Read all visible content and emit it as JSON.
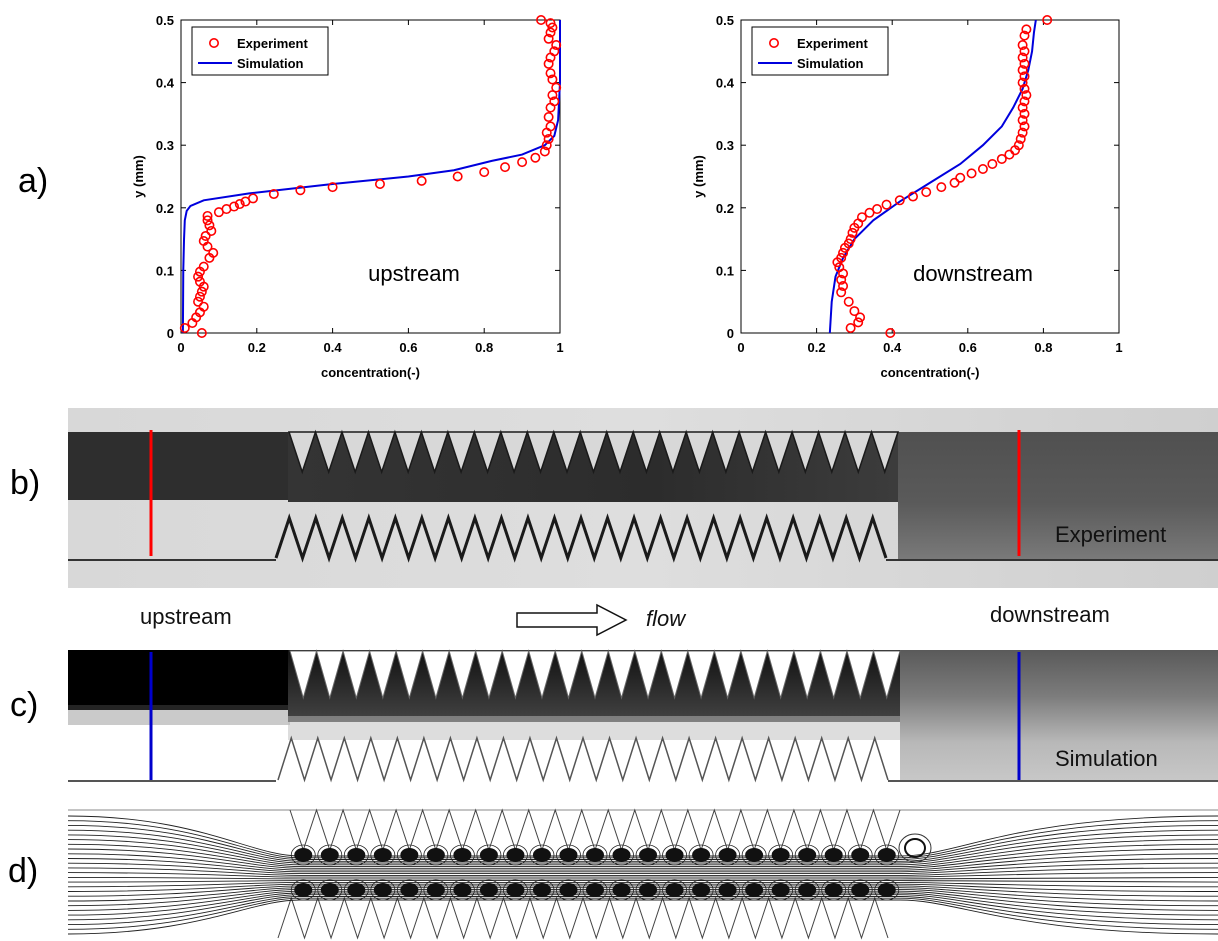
{
  "panel_labels": {
    "a": "a)",
    "b": "b)",
    "c": "c)",
    "d": "d)"
  },
  "labels": {
    "experiment": "Experiment",
    "simulation": "Simulation",
    "upstream": "upstream",
    "downstream": "downstream",
    "flow": "flow"
  },
  "colors": {
    "experiment": "#ff0000",
    "simulation": "#0000dd"
  },
  "chart_data": [
    {
      "type": "line",
      "annotation": "upstream",
      "xlabel": "concentration(-)",
      "ylabel": "y (mm)",
      "xlim": [
        0,
        1
      ],
      "ylim": [
        0,
        0.5
      ],
      "xticks": [
        "0",
        "0.2",
        "0.4",
        "0.6",
        "0.8",
        "1"
      ],
      "yticks": [
        "0",
        "0.1",
        "0.2",
        "0.3",
        "0.4",
        "0.5"
      ],
      "legend": "top-left",
      "grid": false,
      "series": [
        {
          "name": "Experiment",
          "style": "markers",
          "x": [
            0.055,
            0.01,
            0.03,
            0.04,
            0.05,
            0.06,
            0.045,
            0.05,
            0.055,
            0.06,
            0.05,
            0.045,
            0.05,
            0.06,
            0.075,
            0.085,
            0.07,
            0.06,
            0.065,
            0.08,
            0.075,
            0.07,
            0.07,
            0.1,
            0.12,
            0.14,
            0.155,
            0.17,
            0.19,
            0.245,
            0.315,
            0.4,
            0.525,
            0.635,
            0.73,
            0.8,
            0.855,
            0.9,
            0.935,
            0.96,
            0.965,
            0.97,
            0.965,
            0.975,
            0.97,
            0.975,
            0.985,
            0.98,
            0.99,
            0.98,
            0.975,
            0.97,
            0.975,
            0.985,
            0.99,
            0.97,
            0.975,
            0.98,
            0.975,
            0.95
          ],
          "y": [
            0.0,
            0.008,
            0.016,
            0.025,
            0.033,
            0.042,
            0.05,
            0.058,
            0.066,
            0.074,
            0.082,
            0.09,
            0.098,
            0.106,
            0.12,
            0.128,
            0.138,
            0.147,
            0.155,
            0.163,
            0.172,
            0.18,
            0.187,
            0.193,
            0.198,
            0.202,
            0.206,
            0.21,
            0.215,
            0.222,
            0.228,
            0.233,
            0.238,
            0.243,
            0.25,
            0.257,
            0.265,
            0.273,
            0.28,
            0.29,
            0.3,
            0.31,
            0.32,
            0.33,
            0.345,
            0.36,
            0.37,
            0.38,
            0.392,
            0.405,
            0.415,
            0.43,
            0.44,
            0.45,
            0.46,
            0.47,
            0.48,
            0.488,
            0.495,
            0.5
          ]
        },
        {
          "name": "Simulation",
          "style": "line",
          "x": [
            0.005,
            0.006,
            0.008,
            0.01,
            0.015,
            0.025,
            0.06,
            0.18,
            0.4,
            0.6,
            0.72,
            0.82,
            0.9,
            0.96,
            0.985,
            0.995,
            1.0,
            1.0
          ],
          "y": [
            0.0,
            0.1,
            0.15,
            0.18,
            0.195,
            0.203,
            0.212,
            0.223,
            0.238,
            0.25,
            0.26,
            0.275,
            0.285,
            0.3,
            0.315,
            0.34,
            0.4,
            0.5
          ]
        }
      ]
    },
    {
      "type": "line",
      "annotation": "downstream",
      "xlabel": "concentration(-)",
      "ylabel": "y (mm)",
      "xlim": [
        0,
        1
      ],
      "ylim": [
        0,
        0.5
      ],
      "xticks": [
        "0",
        "0.2",
        "0.4",
        "0.6",
        "0.8",
        "1"
      ],
      "yticks": [
        "0",
        "0.1",
        "0.2",
        "0.3",
        "0.4",
        "0.5"
      ],
      "legend": "top-left",
      "grid": false,
      "series": [
        {
          "name": "Experiment",
          "style": "markers",
          "x": [
            0.395,
            0.29,
            0.31,
            0.315,
            0.3,
            0.285,
            0.265,
            0.27,
            0.265,
            0.27,
            0.26,
            0.255,
            0.265,
            0.27,
            0.275,
            0.285,
            0.29,
            0.295,
            0.3,
            0.31,
            0.32,
            0.34,
            0.36,
            0.385,
            0.42,
            0.455,
            0.49,
            0.53,
            0.565,
            0.58,
            0.61,
            0.64,
            0.665,
            0.69,
            0.71,
            0.725,
            0.735,
            0.74,
            0.745,
            0.75,
            0.745,
            0.75,
            0.745,
            0.75,
            0.755,
            0.75,
            0.745,
            0.75,
            0.745,
            0.75,
            0.745,
            0.75,
            0.745,
            0.75,
            0.755,
            0.81
          ],
          "y": [
            0.0,
            0.008,
            0.017,
            0.025,
            0.035,
            0.05,
            0.065,
            0.075,
            0.085,
            0.095,
            0.105,
            0.113,
            0.12,
            0.128,
            0.136,
            0.143,
            0.15,
            0.16,
            0.168,
            0.175,
            0.185,
            0.192,
            0.198,
            0.205,
            0.212,
            0.218,
            0.225,
            0.233,
            0.24,
            0.248,
            0.255,
            0.262,
            0.27,
            0.278,
            0.285,
            0.292,
            0.3,
            0.31,
            0.32,
            0.33,
            0.34,
            0.35,
            0.36,
            0.37,
            0.38,
            0.39,
            0.4,
            0.41,
            0.42,
            0.43,
            0.44,
            0.45,
            0.46,
            0.475,
            0.485,
            0.5
          ]
        },
        {
          "name": "Simulation",
          "style": "line",
          "x": [
            0.235,
            0.24,
            0.25,
            0.27,
            0.3,
            0.35,
            0.42,
            0.5,
            0.58,
            0.64,
            0.69,
            0.72,
            0.745,
            0.76,
            0.77,
            0.775,
            0.78
          ],
          "y": [
            0.0,
            0.05,
            0.09,
            0.12,
            0.15,
            0.18,
            0.21,
            0.24,
            0.27,
            0.3,
            0.33,
            0.36,
            0.39,
            0.42,
            0.45,
            0.48,
            0.5
          ]
        }
      ]
    }
  ]
}
